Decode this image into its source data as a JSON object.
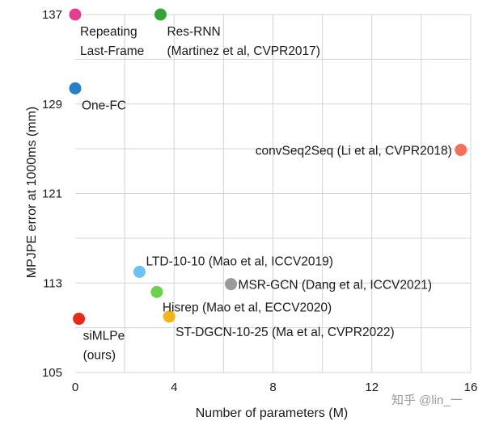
{
  "chart_data": {
    "type": "scatter",
    "xlabel": "Number of parameters (M)",
    "ylabel": "MPJPE error at 1000ms (mm)",
    "xlim": [
      0,
      16
    ],
    "ylim": [
      105,
      137
    ],
    "xticks": [
      0,
      4,
      8,
      12,
      16
    ],
    "yticks": [
      105,
      113,
      121,
      129,
      137
    ],
    "grid": true,
    "points": [
      {
        "name": "Repeating Last-Frame",
        "lines": [
          "Repeating",
          "Last-Frame"
        ],
        "x": 0.0,
        "y": 137.0,
        "color": "#e0408f"
      },
      {
        "name": "Res-RNN (Martinez et al, CVPR2017)",
        "lines": [
          "Res-RNN",
          "(Martinez et al, CVPR2017)"
        ],
        "x": 3.45,
        "y": 137.0,
        "color": "#35a33a"
      },
      {
        "name": "One-FC",
        "lines": [
          "One-FC"
        ],
        "x": 0.0,
        "y": 130.4,
        "color": "#2a7fc3"
      },
      {
        "name": "convSeq2Seq (Li et al, CVPR2018)",
        "lines": [
          "convSeq2Seq (Li et al, CVPR2018)"
        ],
        "x": 15.6,
        "y": 124.9,
        "color": "#f2715e"
      },
      {
        "name": "LTD-10-10 (Mao et al, ICCV2019)",
        "lines": [
          "LTD-10-10 (Mao et al, ICCV2019)"
        ],
        "x": 2.6,
        "y": 114.0,
        "color": "#6cc2f0"
      },
      {
        "name": "MSR-GCN (Dang et al, ICCV2021)",
        "lines": [
          "MSR-GCN (Dang et al, ICCV2021)"
        ],
        "x": 6.3,
        "y": 112.9,
        "color": "#9a9a9a"
      },
      {
        "name": "Hisrep (Mao et al, ECCV2020)",
        "lines": [
          "Hisrep (Mao et al, ECCV2020)"
        ],
        "x": 3.3,
        "y": 112.2,
        "color": "#6fcf52"
      },
      {
        "name": "siMLPe (ours)",
        "lines": [
          "siMLPe",
          "(ours)"
        ],
        "x": 0.15,
        "y": 109.8,
        "color": "#e62b1e"
      },
      {
        "name": "ST-DGCN-10-25 (Ma et al, CVPR2022)",
        "lines": [
          "ST-DGCN-10-25 (Ma et al, CVPR2022)"
        ],
        "x": 3.8,
        "y": 110.0,
        "color": "#f2b51c"
      }
    ]
  },
  "watermark": "知乎 @lin_一"
}
